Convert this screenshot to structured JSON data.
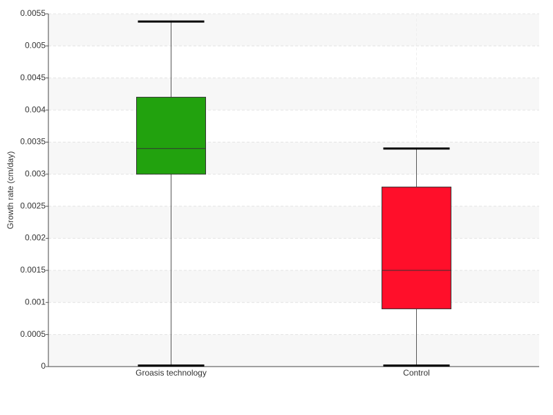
{
  "chart_data": {
    "type": "box",
    "y_label": "Growth rate (cm/day)",
    "categories": [
      "Groasis technology",
      "Control"
    ],
    "boxes": [
      {
        "min": 0,
        "q1": 0.003,
        "median": 0.0034,
        "q3": 0.0042,
        "max": 0.00538,
        "color": "#22a20e"
      },
      {
        "min": 0,
        "q1": 0.0009,
        "median": 0.0015,
        "q3": 0.0028,
        "max": 0.0034,
        "color": "#ff0f2a"
      }
    ],
    "ylim": [
      0,
      0.0055
    ],
    "yticks": [
      0,
      0.0005,
      0.001,
      0.0015,
      0.002,
      0.0025,
      0.003,
      0.0035,
      0.004,
      0.0045,
      0.005,
      0.0055
    ],
    "grid": true
  }
}
